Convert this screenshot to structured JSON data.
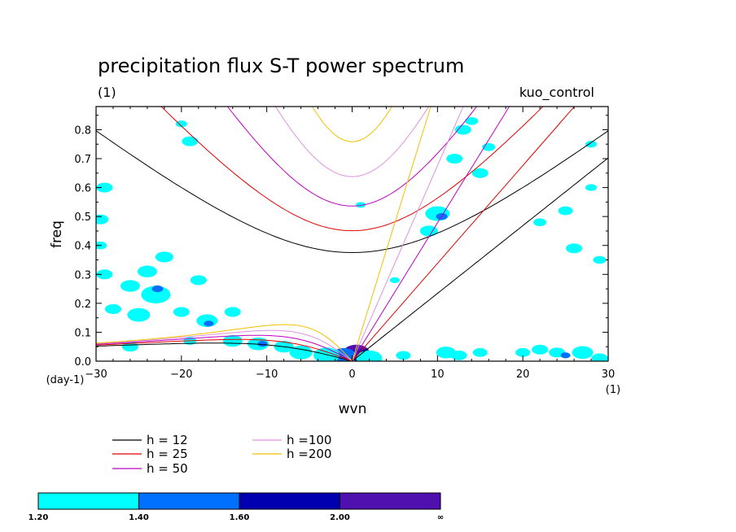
{
  "chart_data": {
    "type": "contour",
    "title": "precipitation flux S-T power spectrum",
    "subtitle_left": "(1)",
    "subtitle_right": "kuo_control",
    "xlabel": "wvn",
    "ylabel": "freq",
    "x_unit": "(1)",
    "y_unit": "(day-1)",
    "xlim": [
      -30,
      30
    ],
    "ylim": [
      0,
      0.88
    ],
    "xticks": [
      -30,
      -20,
      -10,
      0,
      10,
      20,
      30
    ],
    "yticks": [
      0.0,
      0.1,
      0.2,
      0.3,
      0.4,
      0.5,
      0.6,
      0.7,
      0.8
    ],
    "ytick_labels": [
      "0.0",
      "0.1",
      "0.2",
      "0.3",
      "0.4",
      "0.5",
      "0.6",
      "0.7",
      "0.8"
    ],
    "dispersion_curves": [
      {
        "label": "h = 12",
        "h": 12,
        "color": "#000000"
      },
      {
        "label": "h = 25",
        "h": 25,
        "color": "#e00000"
      },
      {
        "label": "h = 50",
        "h": 50,
        "color": "#c000c0"
      },
      {
        "label": "h =100",
        "h": 100,
        "color": "#e090e0"
      },
      {
        "label": "h =200",
        "h": 200,
        "color": "#f0c000"
      }
    ],
    "colorbar": {
      "levels": [
        "1.20",
        "1.40",
        "1.60",
        "2.00",
        "∞"
      ],
      "colors": [
        "#00ffff",
        "#0070ff",
        "#0000b0",
        "#5010b0"
      ]
    },
    "contour_blobs": [
      {
        "x": 0.5,
        "y": 0.03,
        "level": 4,
        "size": 1.6
      },
      {
        "x": 1.0,
        "y": 0.02,
        "level": 3,
        "size": 1.3
      },
      {
        "x": -1.0,
        "y": 0.02,
        "level": 2,
        "size": 1.5
      },
      {
        "x": 2.0,
        "y": 0.01,
        "level": 1,
        "size": 1.6
      },
      {
        "x": -3.0,
        "y": 0.02,
        "level": 1,
        "size": 1.6
      },
      {
        "x": -6.0,
        "y": 0.03,
        "level": 1,
        "size": 1.4
      },
      {
        "x": -8.0,
        "y": 0.05,
        "level": 1,
        "size": 1.2
      },
      {
        "x": -11.0,
        "y": 0.06,
        "level": 1,
        "size": 1.3
      },
      {
        "x": -10.5,
        "y": 0.06,
        "level": 2,
        "size": 0.6
      },
      {
        "x": -14.0,
        "y": 0.07,
        "level": 1,
        "size": 1.2
      },
      {
        "x": -14.0,
        "y": 0.17,
        "level": 1,
        "size": 1.0
      },
      {
        "x": -17.0,
        "y": 0.14,
        "level": 1,
        "size": 1.3
      },
      {
        "x": -16.8,
        "y": 0.13,
        "level": 2,
        "size": 0.6
      },
      {
        "x": -20.0,
        "y": 0.17,
        "level": 1,
        "size": 1.0
      },
      {
        "x": -25.0,
        "y": 0.16,
        "level": 1,
        "size": 1.4
      },
      {
        "x": -23.0,
        "y": 0.23,
        "level": 1,
        "size": 1.8
      },
      {
        "x": -22.8,
        "y": 0.25,
        "level": 2,
        "size": 0.7
      },
      {
        "x": -26.0,
        "y": 0.26,
        "level": 1,
        "size": 1.2
      },
      {
        "x": -28.0,
        "y": 0.18,
        "level": 1,
        "size": 1.0
      },
      {
        "x": -24.0,
        "y": 0.31,
        "level": 1,
        "size": 1.2
      },
      {
        "x": -22.0,
        "y": 0.36,
        "level": 1,
        "size": 1.1
      },
      {
        "x": -29.0,
        "y": 0.3,
        "level": 1,
        "size": 1.0
      },
      {
        "x": -18.0,
        "y": 0.28,
        "level": 1,
        "size": 1.0
      },
      {
        "x": -29.5,
        "y": 0.49,
        "level": 1,
        "size": 1.0
      },
      {
        "x": -29.5,
        "y": 0.4,
        "level": 1,
        "size": 0.8
      },
      {
        "x": -29.0,
        "y": 0.6,
        "level": 1,
        "size": 1.0
      },
      {
        "x": -19.0,
        "y": 0.76,
        "level": 1,
        "size": 1.0
      },
      {
        "x": -20.0,
        "y": 0.82,
        "level": 1,
        "size": 0.7
      },
      {
        "x": -26.0,
        "y": 0.05,
        "level": 1,
        "size": 1.0
      },
      {
        "x": -19.0,
        "y": 0.07,
        "level": 1,
        "size": 0.8
      },
      {
        "x": 10.0,
        "y": 0.51,
        "level": 1,
        "size": 1.5
      },
      {
        "x": 10.5,
        "y": 0.5,
        "level": 2,
        "size": 0.7
      },
      {
        "x": 9.0,
        "y": 0.45,
        "level": 1,
        "size": 1.1
      },
      {
        "x": 12.0,
        "y": 0.7,
        "level": 1,
        "size": 1.0
      },
      {
        "x": 13.0,
        "y": 0.8,
        "level": 1,
        "size": 1.0
      },
      {
        "x": 14.0,
        "y": 0.83,
        "level": 1,
        "size": 0.8
      },
      {
        "x": 15.0,
        "y": 0.65,
        "level": 1,
        "size": 1.0
      },
      {
        "x": 16.0,
        "y": 0.74,
        "level": 1,
        "size": 0.8
      },
      {
        "x": 22.0,
        "y": 0.48,
        "level": 1,
        "size": 0.8
      },
      {
        "x": 25.0,
        "y": 0.52,
        "level": 1,
        "size": 0.9
      },
      {
        "x": 26.0,
        "y": 0.39,
        "level": 1,
        "size": 1.0
      },
      {
        "x": 29.0,
        "y": 0.35,
        "level": 1,
        "size": 0.8
      },
      {
        "x": 28.0,
        "y": 0.6,
        "level": 1,
        "size": 0.7
      },
      {
        "x": 28.0,
        "y": 0.75,
        "level": 1,
        "size": 0.7
      },
      {
        "x": 11.0,
        "y": 0.03,
        "level": 1,
        "size": 1.2
      },
      {
        "x": 12.5,
        "y": 0.02,
        "level": 1,
        "size": 1.0
      },
      {
        "x": 15.0,
        "y": 0.03,
        "level": 1,
        "size": 0.9
      },
      {
        "x": 20.0,
        "y": 0.03,
        "level": 1,
        "size": 0.9
      },
      {
        "x": 22.0,
        "y": 0.04,
        "level": 1,
        "size": 1.0
      },
      {
        "x": 24.0,
        "y": 0.03,
        "level": 1,
        "size": 1.0
      },
      {
        "x": 25.0,
        "y": 0.02,
        "level": 2,
        "size": 0.6
      },
      {
        "x": 27.0,
        "y": 0.03,
        "level": 1,
        "size": 1.3
      },
      {
        "x": 29.0,
        "y": 0.01,
        "level": 1,
        "size": 1.0
      },
      {
        "x": 6.0,
        "y": 0.02,
        "level": 1,
        "size": 0.9
      },
      {
        "x": 5.0,
        "y": 0.28,
        "level": 1,
        "size": 0.6
      },
      {
        "x": 1.0,
        "y": 0.54,
        "level": 1,
        "size": 0.6
      }
    ]
  }
}
